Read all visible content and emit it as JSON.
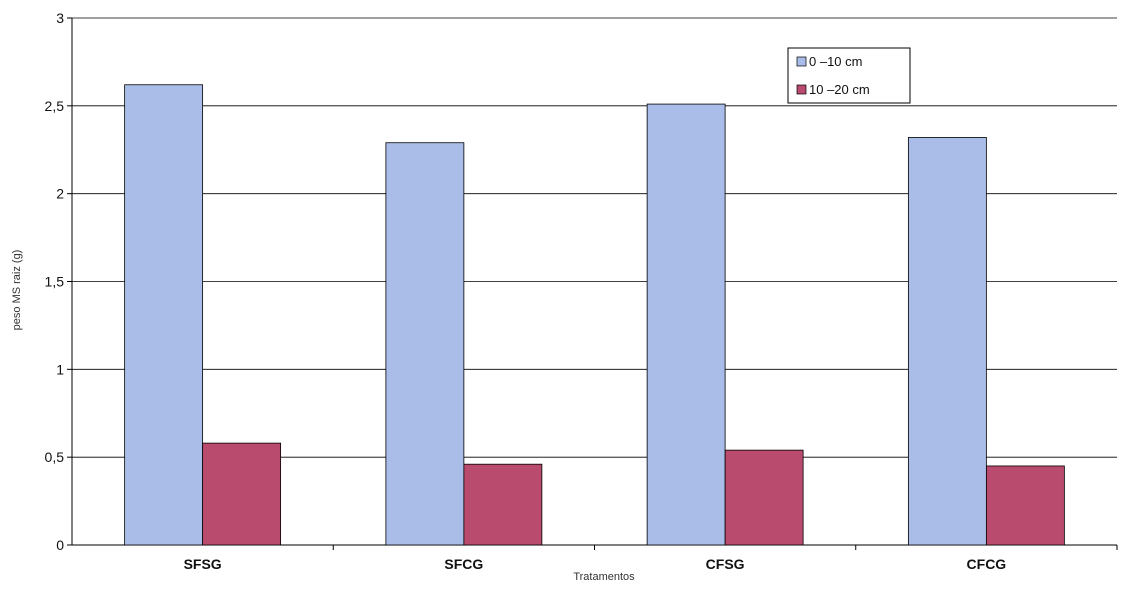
{
  "chart_data": {
    "type": "bar",
    "categories": [
      "SFSG",
      "SFCG",
      "CFSG",
      "CFCG"
    ],
    "series": [
      {
        "name": "0 –10 cm",
        "values": [
          2.62,
          2.29,
          2.51,
          2.32
        ],
        "color": "#a9bde8"
      },
      {
        "name": "10 –20 cm",
        "values": [
          0.58,
          0.46,
          0.54,
          0.45
        ],
        "color": "#b94b6e"
      }
    ],
    "title": "",
    "xlabel": "Tratamentos",
    "ylabel": "peso MS raiz (g)",
    "ylim": [
      0,
      3
    ],
    "yticks": [
      "0",
      "0,5",
      "1",
      "1,5",
      "2",
      "2,5",
      "3"
    ],
    "grid": true,
    "legend_position": "top-right"
  }
}
